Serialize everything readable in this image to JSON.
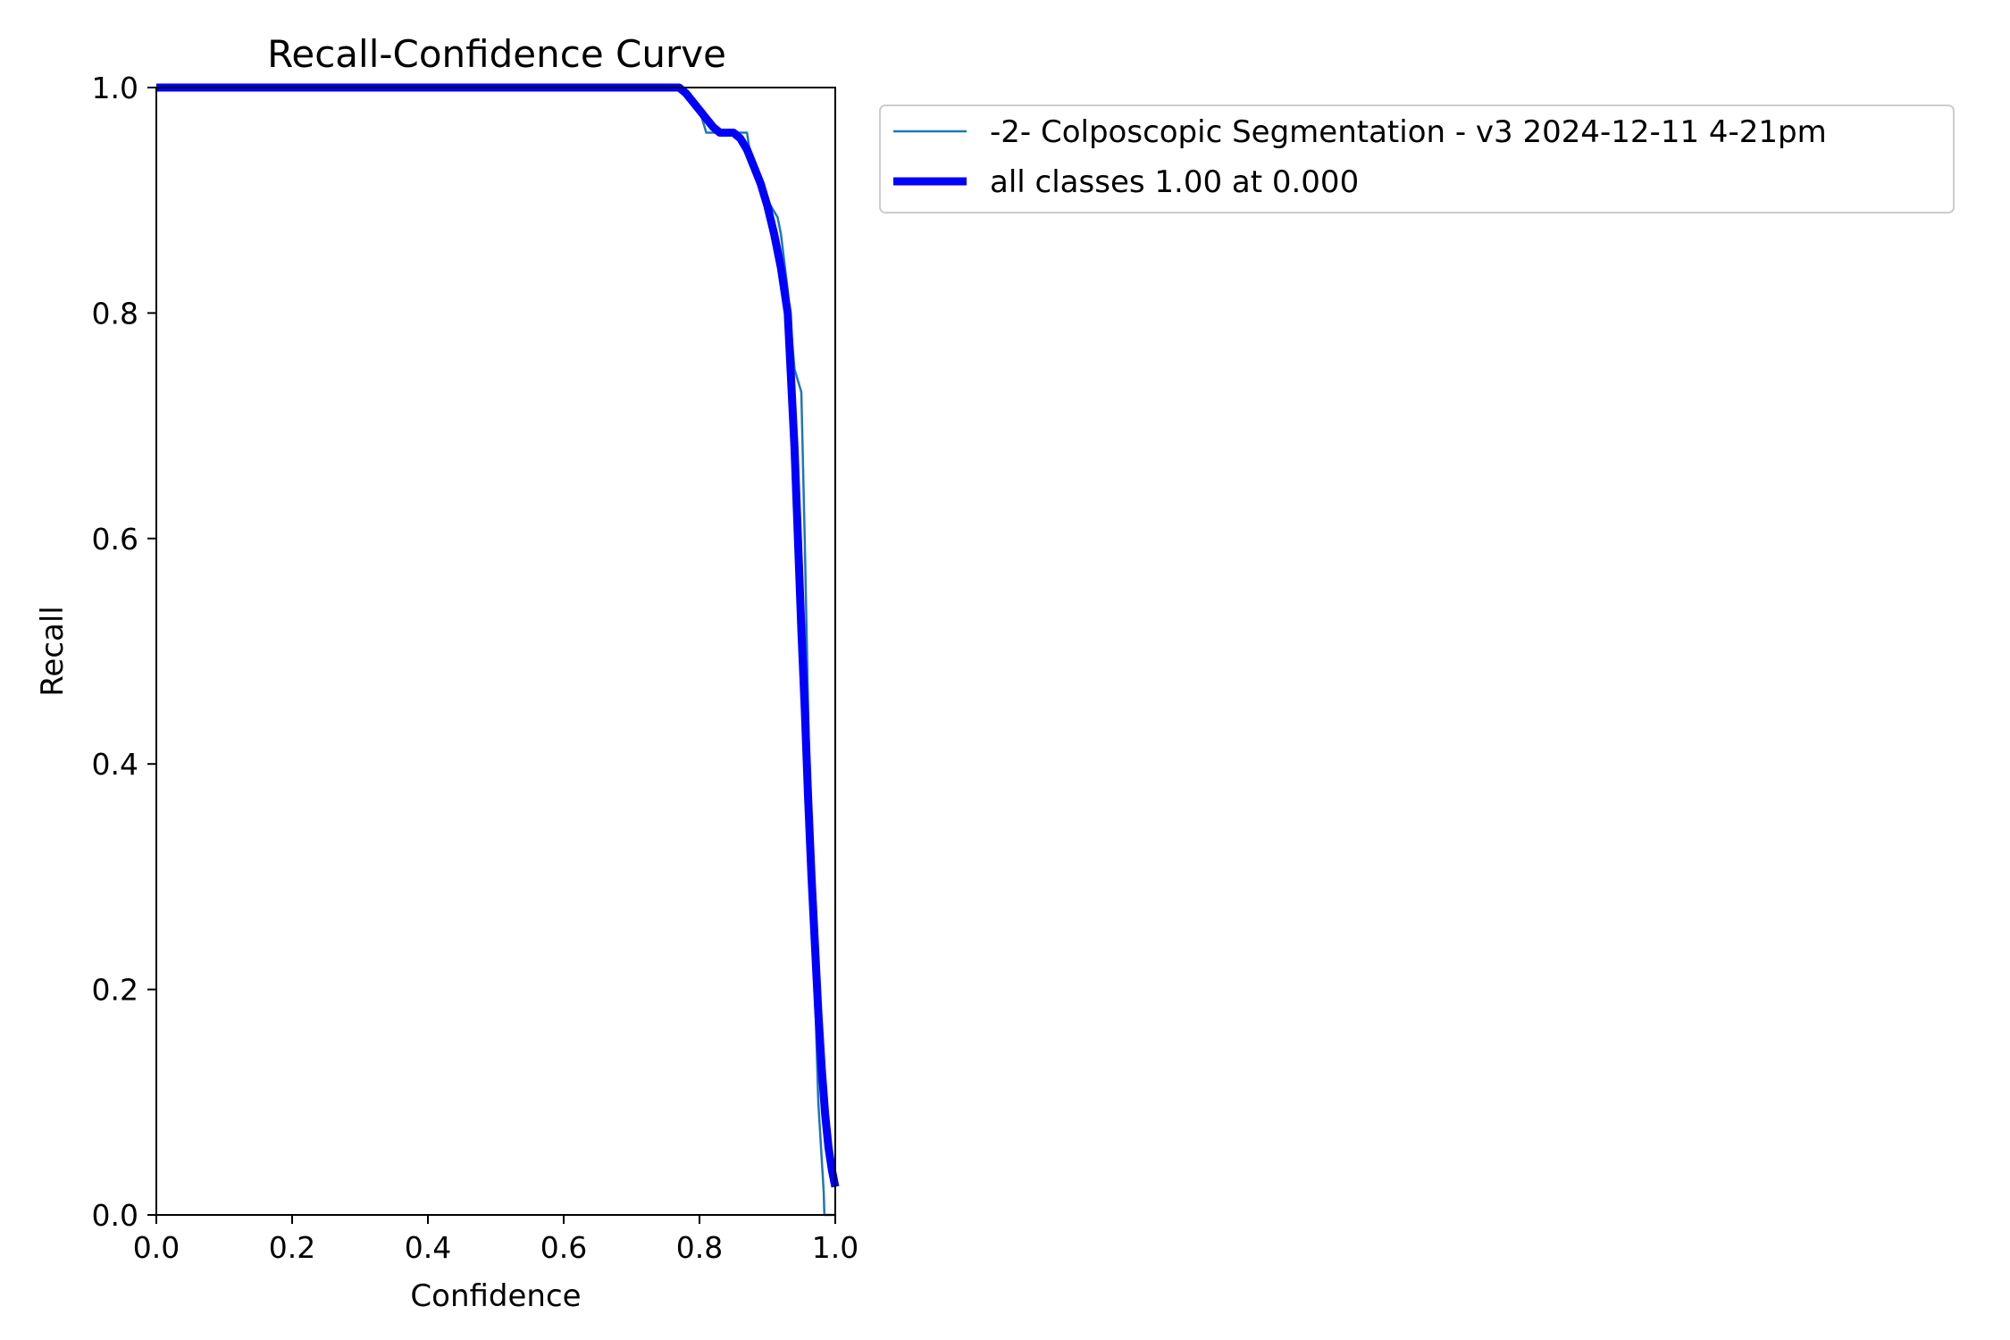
{
  "chart_data": {
    "type": "line",
    "title": "Recall-Confidence Curve",
    "xlabel": "Confidence",
    "ylabel": "Recall",
    "xlim": [
      0,
      1
    ],
    "ylim": [
      0,
      1
    ],
    "xticks": [
      "0.0",
      "0.2",
      "0.4",
      "0.6",
      "0.8",
      "1.0"
    ],
    "yticks": [
      "0.0",
      "0.2",
      "0.4",
      "0.6",
      "0.8",
      "1.0"
    ],
    "grid": false,
    "legend_position": "outside-top-right",
    "series": [
      {
        "name": "-2- Colposcopic Segmentation - v3 2024-12-11 4-21pm",
        "color": "#1f77b4",
        "style": "thin",
        "x": [
          0.0,
          0.77,
          0.79,
          0.8,
          0.81,
          0.82,
          0.83,
          0.84,
          0.85,
          0.86,
          0.87,
          0.875,
          0.88,
          0.89,
          0.9,
          0.91,
          0.915,
          0.92,
          0.93,
          0.94,
          0.95,
          0.955,
          0.96,
          0.965,
          0.97,
          0.975,
          0.98,
          0.983,
          0.984,
          1.0
        ],
        "y": [
          1.0,
          1.0,
          0.99,
          0.98,
          0.96,
          0.96,
          0.96,
          0.96,
          0.96,
          0.96,
          0.96,
          0.94,
          0.925,
          0.915,
          0.9,
          0.89,
          0.885,
          0.87,
          0.82,
          0.75,
          0.73,
          0.6,
          0.45,
          0.3,
          0.2,
          0.1,
          0.05,
          0.02,
          0.0,
          0.0
        ]
      },
      {
        "name": "all classes 1.00 at 0.000",
        "color": "#0000ff",
        "style": "thick",
        "x": [
          0.0,
          0.77,
          0.78,
          0.8,
          0.82,
          0.83,
          0.85,
          0.86,
          0.87,
          0.88,
          0.89,
          0.9,
          0.91,
          0.92,
          0.93,
          0.935,
          0.94,
          0.945,
          0.95,
          0.955,
          0.96,
          0.965,
          0.97,
          0.975,
          0.98,
          0.985,
          0.99,
          0.995,
          1.0
        ],
        "y": [
          1.0,
          1.0,
          0.995,
          0.98,
          0.965,
          0.96,
          0.96,
          0.955,
          0.945,
          0.93,
          0.915,
          0.895,
          0.87,
          0.84,
          0.8,
          0.74,
          0.68,
          0.6,
          0.52,
          0.45,
          0.37,
          0.3,
          0.24,
          0.18,
          0.13,
          0.09,
          0.06,
          0.04,
          0.025
        ]
      }
    ]
  }
}
